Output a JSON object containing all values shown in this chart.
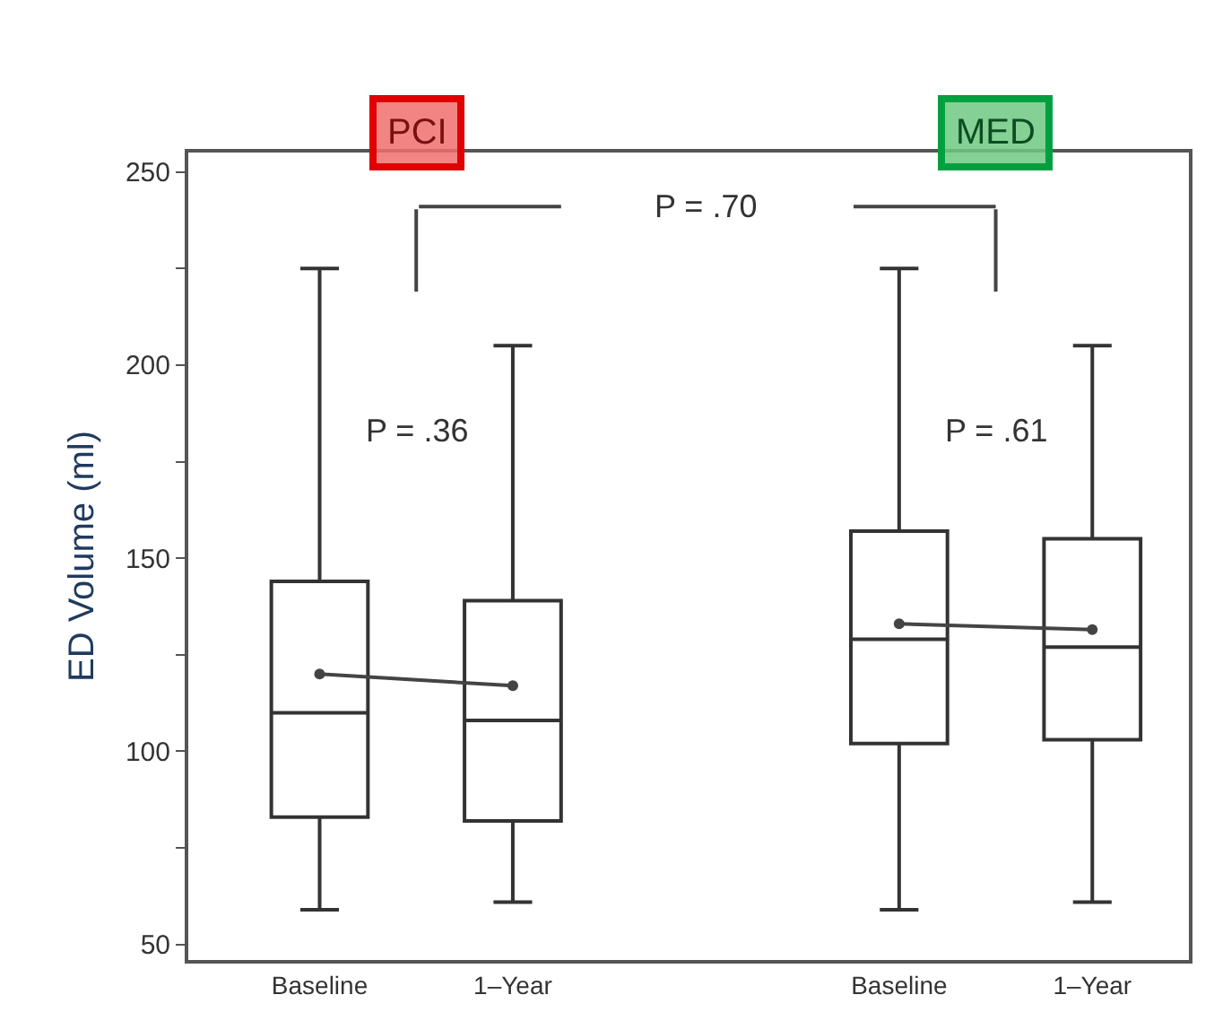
{
  "chart_data": {
    "type": "box",
    "ylabel": "ED Volume (ml)",
    "categories": [
      "Baseline",
      "1–Year",
      null,
      "Baseline",
      "1–Year"
    ],
    "boxes": [
      {
        "low": 59,
        "q1": 83,
        "median": 110,
        "q3": 144,
        "high": 225
      },
      {
        "low": 61,
        "q1": 82,
        "median": 108,
        "q3": 139,
        "high": 205
      },
      null,
      {
        "low": 59,
        "q1": 102,
        "median": 129,
        "q3": 157,
        "high": 225
      },
      {
        "low": 61,
        "q1": 103,
        "median": 127,
        "q3": 155,
        "high": 205
      }
    ],
    "series": [
      {
        "type": "line",
        "color": "#444444",
        "values": [
          120,
          117,
          null,
          133,
          131.5
        ]
      }
    ],
    "marker": "circle",
    "ylim": [
      46,
      255
    ],
    "yticks": [
      50,
      {
        "value": 75,
        "label": null
      },
      100,
      {
        "value": 125,
        "label": null
      },
      150,
      {
        "value": 175,
        "label": null
      },
      200,
      {
        "value": 225,
        "label": null
      },
      250
    ],
    "annotations": [
      "PCI",
      "MED",
      "P = .36",
      "P = .61",
      "P = .70"
    ]
  }
}
